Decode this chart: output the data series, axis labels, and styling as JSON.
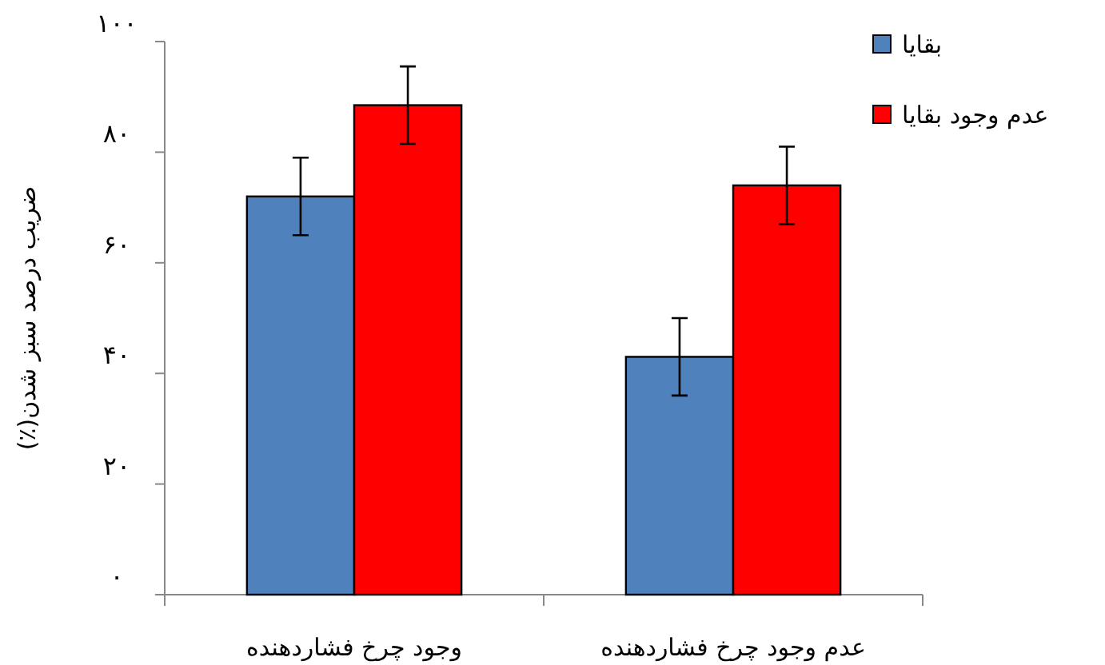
{
  "chart_data": {
    "type": "bar",
    "categories": [
      "وجود چرخ فشاردهنده",
      "عدم وجود چرخ فشاردهنده"
    ],
    "series": [
      {
        "name": "بقایا",
        "color": "#4f81bd",
        "values": [
          72,
          43
        ],
        "errors": [
          7,
          7
        ]
      },
      {
        "name": "عدم وجود بقایا",
        "color": "#ff0000",
        "values": [
          88.5,
          74
        ],
        "errors": [
          7,
          7
        ]
      }
    ],
    "ylabel": "ضریب درصد سبز شدن(٪)",
    "ylim": [
      0,
      100
    ],
    "yticks": [
      {
        "value": 0,
        "label": "۰"
      },
      {
        "value": 20,
        "label": "۲۰"
      },
      {
        "value": 40,
        "label": "۴۰"
      },
      {
        "value": 60,
        "label": "۶۰"
      },
      {
        "value": 80,
        "label": "۸۰"
      },
      {
        "value": 100,
        "label": "۱۰۰"
      }
    ],
    "legend": "top right",
    "grid": false
  }
}
